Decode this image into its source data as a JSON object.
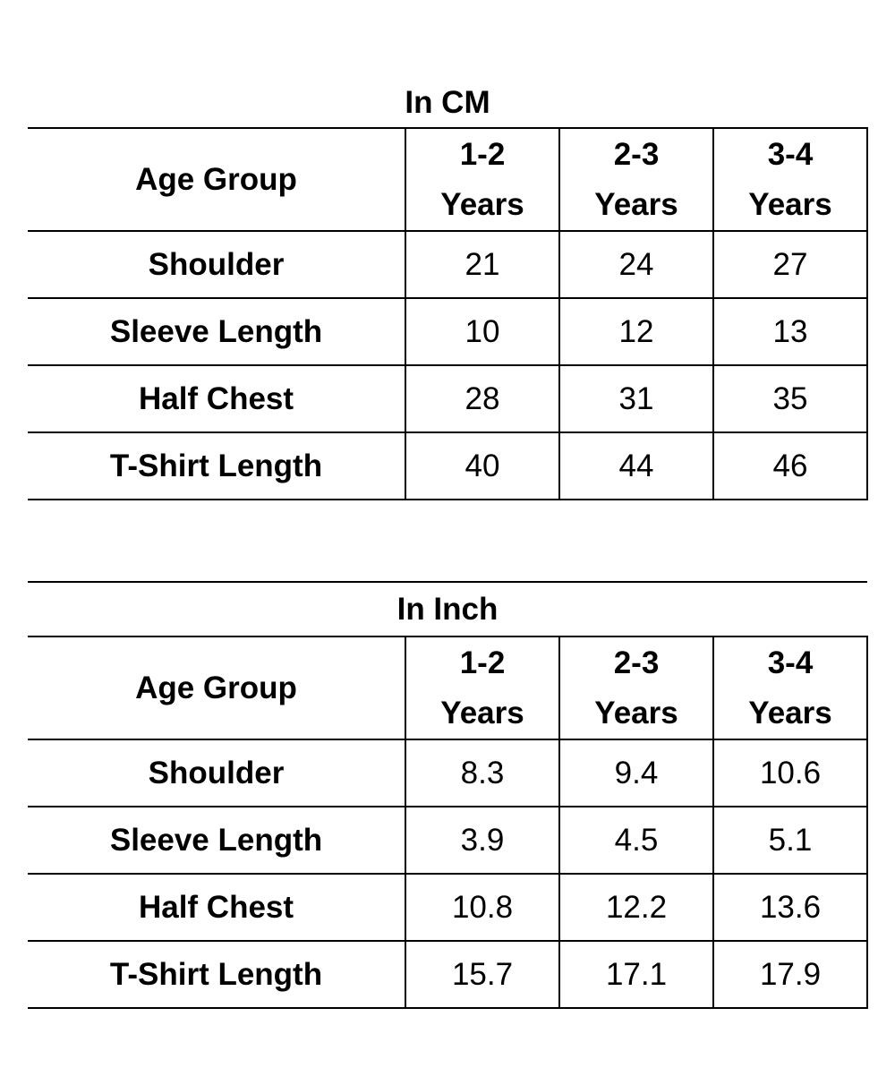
{
  "tables": [
    {
      "title": "In CM",
      "header_label": "Age Group",
      "columns": [
        {
          "line1": "1-2",
          "line2": "Years"
        },
        {
          "line1": "2-3",
          "line2": "Years"
        },
        {
          "line1": "3-4",
          "line2": "Years"
        }
      ],
      "rows": [
        {
          "label": "Shoulder",
          "values": [
            "21",
            "24",
            "27"
          ]
        },
        {
          "label": "Sleeve Length",
          "values": [
            "10",
            "12",
            "13"
          ]
        },
        {
          "label": "Half Chest",
          "values": [
            "28",
            "31",
            "35"
          ]
        },
        {
          "label": "T-Shirt Length",
          "values": [
            "40",
            "44",
            "46"
          ]
        }
      ]
    },
    {
      "title": "In Inch",
      "header_label": "Age Group",
      "columns": [
        {
          "line1": "1-2",
          "line2": "Years"
        },
        {
          "line1": "2-3",
          "line2": "Years"
        },
        {
          "line1": "3-4",
          "line2": "Years"
        }
      ],
      "rows": [
        {
          "label": "Shoulder",
          "values": [
            "8.3",
            "9.4",
            "10.6"
          ]
        },
        {
          "label": "Sleeve Length",
          "values": [
            "3.9",
            "4.5",
            "5.1"
          ]
        },
        {
          "label": "Half Chest",
          "values": [
            "10.8",
            "12.2",
            "13.6"
          ]
        },
        {
          "label": "T-Shirt Length",
          "values": [
            "15.7",
            "17.1",
            "17.9"
          ]
        }
      ]
    }
  ]
}
